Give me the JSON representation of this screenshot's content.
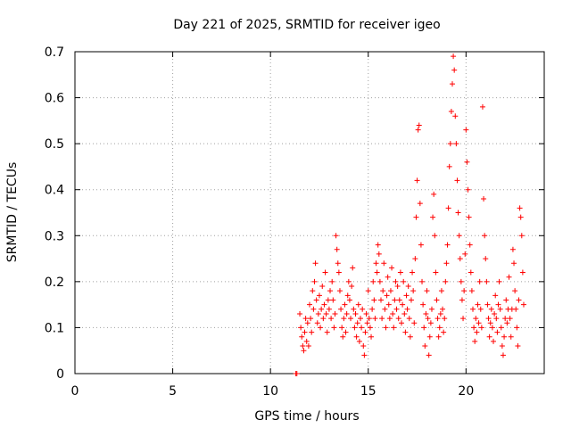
{
  "chart_data": {
    "type": "scatter",
    "title": "Day 221 of 2025, SRMTID for receiver igeo",
    "xlabel": "GPS time / hours",
    "ylabel": "SRMTID / TECUs",
    "xlim": [
      0,
      24
    ],
    "ylim": [
      0,
      0.7
    ],
    "xticks": [
      0,
      5,
      10,
      15,
      20
    ],
    "xtick_labels": [
      "0",
      "5",
      "10",
      "15",
      "20"
    ],
    "yticks": [
      0,
      0.1,
      0.2,
      0.3,
      0.4,
      0.5,
      0.6,
      0.7
    ],
    "ytick_labels": [
      "0",
      "0.1",
      "0.2",
      "0.3",
      "0.4",
      "0.5",
      "0.6",
      "0.7"
    ],
    "grid": true,
    "marker": "+",
    "color": "#ff0000",
    "series": [
      {
        "name": "SRMTID",
        "points": [
          [
            11.3,
            0.0
          ],
          [
            11.35,
            0.0
          ],
          [
            11.5,
            0.13
          ],
          [
            11.55,
            0.1
          ],
          [
            11.6,
            0.08
          ],
          [
            11.65,
            0.06
          ],
          [
            11.7,
            0.05
          ],
          [
            11.75,
            0.09
          ],
          [
            11.8,
            0.12
          ],
          [
            11.85,
            0.07
          ],
          [
            11.9,
            0.11
          ],
          [
            11.95,
            0.06
          ],
          [
            12.0,
            0.15
          ],
          [
            12.05,
            0.12
          ],
          [
            12.1,
            0.09
          ],
          [
            12.15,
            0.18
          ],
          [
            12.2,
            0.14
          ],
          [
            12.25,
            0.2
          ],
          [
            12.3,
            0.24
          ],
          [
            12.35,
            0.16
          ],
          [
            12.4,
            0.11
          ],
          [
            12.45,
            0.13
          ],
          [
            12.5,
            0.17
          ],
          [
            12.55,
            0.1
          ],
          [
            12.6,
            0.14
          ],
          [
            12.65,
            0.19
          ],
          [
            12.7,
            0.12
          ],
          [
            12.75,
            0.15
          ],
          [
            12.8,
            0.22
          ],
          [
            12.85,
            0.13
          ],
          [
            12.9,
            0.09
          ],
          [
            12.95,
            0.16
          ],
          [
            13.0,
            0.14
          ],
          [
            13.05,
            0.18
          ],
          [
            13.1,
            0.12
          ],
          [
            13.15,
            0.2
          ],
          [
            13.2,
            0.16
          ],
          [
            13.25,
            0.1
          ],
          [
            13.3,
            0.13
          ],
          [
            13.35,
            0.3
          ],
          [
            13.4,
            0.27
          ],
          [
            13.45,
            0.24
          ],
          [
            13.5,
            0.22
          ],
          [
            13.55,
            0.18
          ],
          [
            13.6,
            0.14
          ],
          [
            13.65,
            0.1
          ],
          [
            13.7,
            0.08
          ],
          [
            13.75,
            0.12
          ],
          [
            13.8,
            0.15
          ],
          [
            13.85,
            0.09
          ],
          [
            13.9,
            0.13
          ],
          [
            13.95,
            0.17
          ],
          [
            14.0,
            0.2
          ],
          [
            14.05,
            0.16
          ],
          [
            14.1,
            0.12
          ],
          [
            14.15,
            0.19
          ],
          [
            14.2,
            0.23
          ],
          [
            14.25,
            0.14
          ],
          [
            14.3,
            0.1
          ],
          [
            14.35,
            0.13
          ],
          [
            14.4,
            0.08
          ],
          [
            14.45,
            0.11
          ],
          [
            14.5,
            0.15
          ],
          [
            14.55,
            0.07
          ],
          [
            14.6,
            0.12
          ],
          [
            14.65,
            0.1
          ],
          [
            14.7,
            0.14
          ],
          [
            14.75,
            0.06
          ],
          [
            14.8,
            0.04
          ],
          [
            14.85,
            0.09
          ],
          [
            14.9,
            0.13
          ],
          [
            14.95,
            0.11
          ],
          [
            15.0,
            0.18
          ],
          [
            15.05,
            0.12
          ],
          [
            15.1,
            0.1
          ],
          [
            15.15,
            0.08
          ],
          [
            15.2,
            0.14
          ],
          [
            15.25,
            0.2
          ],
          [
            15.3,
            0.16
          ],
          [
            15.35,
            0.12
          ],
          [
            15.4,
            0.24
          ],
          [
            15.45,
            0.22
          ],
          [
            15.5,
            0.28
          ],
          [
            15.55,
            0.26
          ],
          [
            15.6,
            0.2
          ],
          [
            15.65,
            0.16
          ],
          [
            15.7,
            0.12
          ],
          [
            15.75,
            0.18
          ],
          [
            15.8,
            0.24
          ],
          [
            15.85,
            0.14
          ],
          [
            15.9,
            0.1
          ],
          [
            15.95,
            0.17
          ],
          [
            16.0,
            0.21
          ],
          [
            16.05,
            0.15
          ],
          [
            16.1,
            0.12
          ],
          [
            16.15,
            0.18
          ],
          [
            16.2,
            0.23
          ],
          [
            16.25,
            0.13
          ],
          [
            16.3,
            0.1
          ],
          [
            16.35,
            0.16
          ],
          [
            16.4,
            0.2
          ],
          [
            16.45,
            0.14
          ],
          [
            16.5,
            0.19
          ],
          [
            16.55,
            0.12
          ],
          [
            16.6,
            0.16
          ],
          [
            16.65,
            0.22
          ],
          [
            16.7,
            0.11
          ],
          [
            16.75,
            0.15
          ],
          [
            16.8,
            0.2
          ],
          [
            16.85,
            0.13
          ],
          [
            16.9,
            0.09
          ],
          [
            16.95,
            0.17
          ],
          [
            17.0,
            0.14
          ],
          [
            17.05,
            0.19
          ],
          [
            17.1,
            0.12
          ],
          [
            17.15,
            0.08
          ],
          [
            17.2,
            0.16
          ],
          [
            17.25,
            0.22
          ],
          [
            17.3,
            0.18
          ],
          [
            17.35,
            0.11
          ],
          [
            17.4,
            0.25
          ],
          [
            17.45,
            0.34
          ],
          [
            17.5,
            0.42
          ],
          [
            17.55,
            0.53
          ],
          [
            17.6,
            0.54
          ],
          [
            17.65,
            0.37
          ],
          [
            17.7,
            0.28
          ],
          [
            17.75,
            0.2
          ],
          [
            17.8,
            0.15
          ],
          [
            17.85,
            0.1
          ],
          [
            17.9,
            0.06
          ],
          [
            17.95,
            0.13
          ],
          [
            18.0,
            0.18
          ],
          [
            18.05,
            0.12
          ],
          [
            18.1,
            0.04
          ],
          [
            18.15,
            0.08
          ],
          [
            18.2,
            0.11
          ],
          [
            18.25,
            0.14
          ],
          [
            18.3,
            0.34
          ],
          [
            18.35,
            0.39
          ],
          [
            18.4,
            0.3
          ],
          [
            18.45,
            0.22
          ],
          [
            18.5,
            0.16
          ],
          [
            18.55,
            0.12
          ],
          [
            18.6,
            0.08
          ],
          [
            18.65,
            0.1
          ],
          [
            18.7,
            0.13
          ],
          [
            18.75,
            0.18
          ],
          [
            18.8,
            0.14
          ],
          [
            18.85,
            0.09
          ],
          [
            18.9,
            0.12
          ],
          [
            18.95,
            0.2
          ],
          [
            19.0,
            0.24
          ],
          [
            19.05,
            0.28
          ],
          [
            19.1,
            0.36
          ],
          [
            19.15,
            0.45
          ],
          [
            19.2,
            0.5
          ],
          [
            19.25,
            0.57
          ],
          [
            19.3,
            0.63
          ],
          [
            19.35,
            0.69
          ],
          [
            19.4,
            0.66
          ],
          [
            19.45,
            0.56
          ],
          [
            19.5,
            0.5
          ],
          [
            19.55,
            0.42
          ],
          [
            19.6,
            0.35
          ],
          [
            19.65,
            0.3
          ],
          [
            19.7,
            0.25
          ],
          [
            19.75,
            0.2
          ],
          [
            19.8,
            0.16
          ],
          [
            19.85,
            0.12
          ],
          [
            19.9,
            0.18
          ],
          [
            19.95,
            0.26
          ],
          [
            20.0,
            0.53
          ],
          [
            20.05,
            0.46
          ],
          [
            20.1,
            0.4
          ],
          [
            20.15,
            0.34
          ],
          [
            20.2,
            0.28
          ],
          [
            20.25,
            0.22
          ],
          [
            20.3,
            0.18
          ],
          [
            20.35,
            0.14
          ],
          [
            20.4,
            0.1
          ],
          [
            20.45,
            0.07
          ],
          [
            20.5,
            0.12
          ],
          [
            20.55,
            0.09
          ],
          [
            20.6,
            0.15
          ],
          [
            20.65,
            0.11
          ],
          [
            20.7,
            0.2
          ],
          [
            20.75,
            0.14
          ],
          [
            20.8,
            0.1
          ],
          [
            20.85,
            0.58
          ],
          [
            20.9,
            0.38
          ],
          [
            20.95,
            0.3
          ],
          [
            21.0,
            0.25
          ],
          [
            21.05,
            0.2
          ],
          [
            21.1,
            0.15
          ],
          [
            21.15,
            0.12
          ],
          [
            21.2,
            0.08
          ],
          [
            21.25,
            0.11
          ],
          [
            21.3,
            0.14
          ],
          [
            21.35,
            0.1
          ],
          [
            21.4,
            0.07
          ],
          [
            21.45,
            0.13
          ],
          [
            21.5,
            0.17
          ],
          [
            21.55,
            0.12
          ],
          [
            21.6,
            0.09
          ],
          [
            21.65,
            0.15
          ],
          [
            21.7,
            0.2
          ],
          [
            21.75,
            0.14
          ],
          [
            21.8,
            0.1
          ],
          [
            21.85,
            0.06
          ],
          [
            21.9,
            0.04
          ],
          [
            21.95,
            0.08
          ],
          [
            22.0,
            0.12
          ],
          [
            22.05,
            0.16
          ],
          [
            22.1,
            0.11
          ],
          [
            22.15,
            0.14
          ],
          [
            22.2,
            0.21
          ],
          [
            22.25,
            0.12
          ],
          [
            22.3,
            0.08
          ],
          [
            22.35,
            0.14
          ],
          [
            22.4,
            0.27
          ],
          [
            22.45,
            0.24
          ],
          [
            22.5,
            0.18
          ],
          [
            22.55,
            0.14
          ],
          [
            22.6,
            0.1
          ],
          [
            22.65,
            0.06
          ],
          [
            22.7,
            0.16
          ],
          [
            22.75,
            0.36
          ],
          [
            22.8,
            0.34
          ],
          [
            22.85,
            0.3
          ],
          [
            22.9,
            0.22
          ],
          [
            22.95,
            0.15
          ]
        ]
      }
    ]
  }
}
